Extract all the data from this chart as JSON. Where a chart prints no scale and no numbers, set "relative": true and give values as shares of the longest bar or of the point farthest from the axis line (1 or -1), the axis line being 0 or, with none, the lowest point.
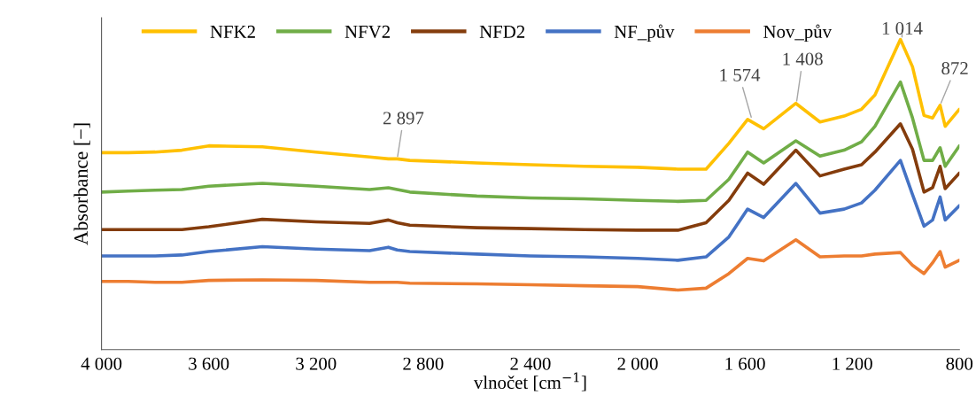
{
  "chart_data": {
    "type": "line",
    "relative": true,
    "xlabel": "vlnočet [cm$^{−1}$]",
    "ylabel": "Absorbance [−]",
    "x": [
      4000,
      3900,
      3800,
      3700,
      3600,
      3400,
      3200,
      3000,
      2930,
      2897,
      2850,
      2600,
      2400,
      2200,
      2000,
      1850,
      1745,
      1660,
      1590,
      1530,
      1410,
      1320,
      1230,
      1165,
      1115,
      1020,
      975,
      932,
      900,
      872,
      853,
      800
    ],
    "xlim": [
      4000,
      800
    ],
    "xticks": [
      {
        "value": 4000,
        "label": "4 000"
      },
      {
        "value": 3600,
        "label": "3 600"
      },
      {
        "value": 3200,
        "label": "3 200"
      },
      {
        "value": 2800,
        "label": "2 800"
      },
      {
        "value": 2400,
        "label": "2 400"
      },
      {
        "value": 2000,
        "label": "2 000"
      },
      {
        "value": 1600,
        "label": "1 600"
      },
      {
        "value": 1200,
        "label": "1 200"
      },
      800
    ],
    "tick_labels": "x",
    "grid": false,
    "legend": "top",
    "marker": "none",
    "line_style": "solid",
    "series": [
      {
        "name": "NFK2",
        "color": "#ffc000",
        "values": [
          0.635,
          0.635,
          0.637,
          0.643,
          0.657,
          0.654,
          0.637,
          0.621,
          0.615,
          0.615,
          0.61,
          0.602,
          0.596,
          0.591,
          0.588,
          0.582,
          0.582,
          0.665,
          0.742,
          0.712,
          0.794,
          0.734,
          0.753,
          0.775,
          0.821,
          1.0,
          0.912,
          0.755,
          0.747,
          0.788,
          0.72,
          0.775
        ]
      },
      {
        "name": "NFV2",
        "color": "#70ad47",
        "values": [
          0.508,
          0.511,
          0.514,
          0.516,
          0.527,
          0.536,
          0.527,
          0.516,
          0.522,
          0.516,
          0.508,
          0.495,
          0.489,
          0.486,
          0.481,
          0.478,
          0.481,
          0.549,
          0.637,
          0.602,
          0.673,
          0.624,
          0.643,
          0.67,
          0.72,
          0.863,
          0.747,
          0.61,
          0.61,
          0.651,
          0.591,
          0.657
        ]
      },
      {
        "name": "NFD2",
        "color": "#843c0c",
        "values": [
          0.387,
          0.387,
          0.387,
          0.387,
          0.396,
          0.42,
          0.412,
          0.407,
          0.418,
          0.409,
          0.401,
          0.393,
          0.39,
          0.387,
          0.385,
          0.385,
          0.409,
          0.481,
          0.569,
          0.533,
          0.643,
          0.56,
          0.582,
          0.596,
          0.637,
          0.728,
          0.646,
          0.508,
          0.522,
          0.591,
          0.519,
          0.569
        ]
      },
      {
        "name": "NF_pův",
        "color": "#4472c4",
        "values": [
          0.302,
          0.302,
          0.302,
          0.305,
          0.316,
          0.332,
          0.324,
          0.319,
          0.33,
          0.321,
          0.316,
          0.308,
          0.302,
          0.299,
          0.294,
          0.288,
          0.299,
          0.363,
          0.453,
          0.426,
          0.536,
          0.44,
          0.453,
          0.473,
          0.514,
          0.61,
          0.5,
          0.398,
          0.418,
          0.492,
          0.418,
          0.464
        ]
      },
      {
        "name": "Nov_pův",
        "color": "#ed7d31",
        "values": [
          0.22,
          0.22,
          0.217,
          0.217,
          0.223,
          0.225,
          0.223,
          0.217,
          0.217,
          0.217,
          0.214,
          0.212,
          0.209,
          0.206,
          0.203,
          0.192,
          0.198,
          0.245,
          0.294,
          0.286,
          0.354,
          0.299,
          0.302,
          0.302,
          0.308,
          0.313,
          0.272,
          0.245,
          0.28,
          0.316,
          0.266,
          0.288
        ]
      }
    ],
    "annotations": [
      {
        "text": "2 897",
        "x": 2897,
        "y": 0.615
      },
      {
        "text": "1 574",
        "x": 1574,
        "y": 0.742
      },
      {
        "text": "1 408",
        "x": 1408,
        "y": 0.794
      },
      {
        "text": "1 014",
        "x": 1014,
        "y": 1.0
      },
      {
        "text": "872",
        "x": 872,
        "y": 0.788
      }
    ]
  }
}
